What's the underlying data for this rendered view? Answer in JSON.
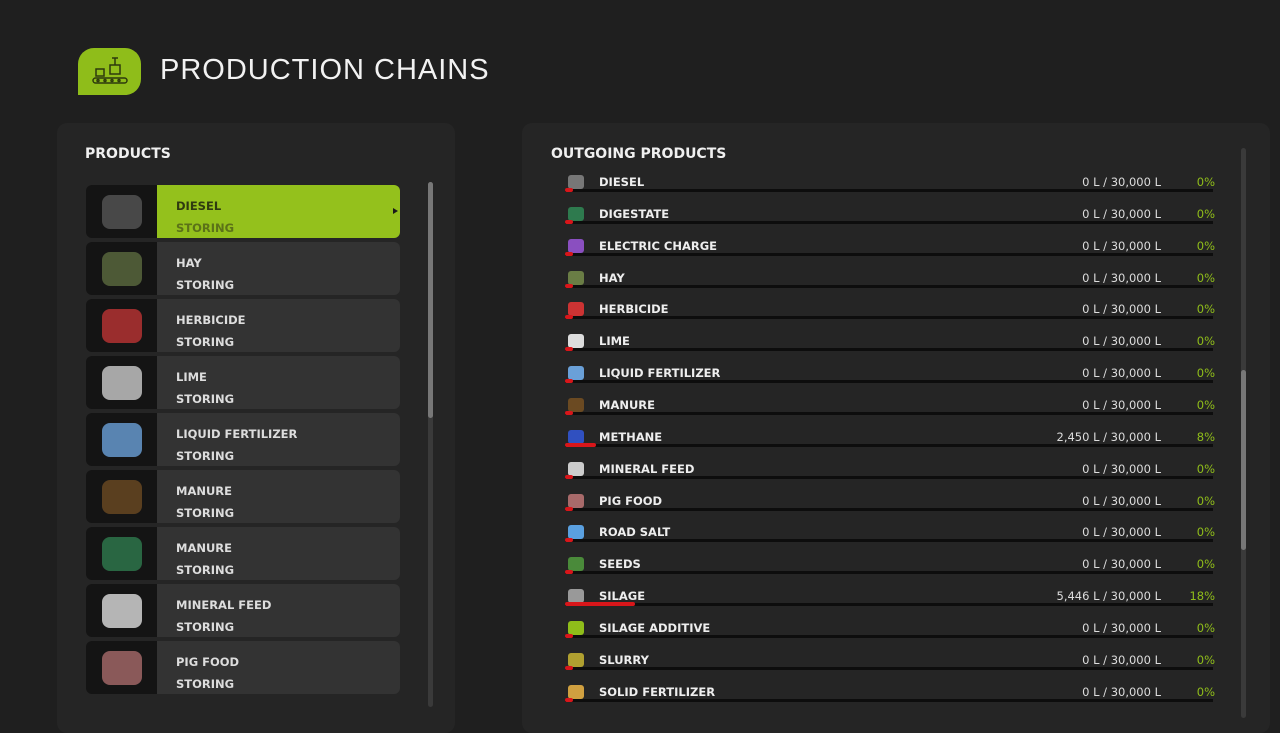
{
  "header": {
    "title": "PRODUCTION CHAINS",
    "icon": "production-conveyor-icon"
  },
  "colors": {
    "accent": "#94c11c",
    "bar_fill": "#d8161a",
    "percent": "#8fbd1a"
  },
  "products": {
    "heading": "PRODUCTS",
    "items": [
      {
        "name": "DIESEL",
        "status": "STORING",
        "icon": "fuel-pump-icon",
        "color": "#555",
        "selected": true
      },
      {
        "name": "HAY",
        "status": "STORING",
        "icon": "hay-icon",
        "color": "#5b6a3f"
      },
      {
        "name": "HERBICIDE",
        "status": "STORING",
        "icon": "herbicide-bottle-icon",
        "color": "#b33"
      },
      {
        "name": "LIME",
        "status": "STORING",
        "icon": "lime-pile-icon",
        "color": "#ccc"
      },
      {
        "name": "LIQUID FERTILIZER",
        "status": "STORING",
        "icon": "fertilizer-canister-icon",
        "color": "#6aa0d8"
      },
      {
        "name": "MANURE",
        "status": "STORING",
        "icon": "manure-icon",
        "color": "#6b4a22"
      },
      {
        "name": "MANURE",
        "status": "STORING",
        "icon": "manure-heap-icon",
        "color": "#2e7a4e"
      },
      {
        "name": "MINERAL FEED",
        "status": "STORING",
        "icon": "mineral-feed-bag-icon",
        "color": "#ddd"
      },
      {
        "name": "PIG FOOD",
        "status": "STORING",
        "icon": "pig-food-bag-icon",
        "color": "#a86a6a"
      }
    ]
  },
  "outgoing": {
    "heading": "OUTGOING PRODUCTS",
    "items": [
      {
        "name": "DIESEL",
        "amount": "0 L / 30,000 L",
        "percent": "0%",
        "fill": 0,
        "color": "#777"
      },
      {
        "name": "DIGESTATE",
        "amount": "0 L / 30,000 L",
        "percent": "0%",
        "fill": 0,
        "color": "#2e7a4e"
      },
      {
        "name": "ELECTRIC CHARGE",
        "amount": "0 L / 30,000 L",
        "percent": "0%",
        "fill": 0,
        "color": "#8a4fc0"
      },
      {
        "name": "HAY",
        "amount": "0 L / 30,000 L",
        "percent": "0%",
        "fill": 0,
        "color": "#6a7d45"
      },
      {
        "name": "HERBICIDE",
        "amount": "0 L / 30,000 L",
        "percent": "0%",
        "fill": 0,
        "color": "#c33"
      },
      {
        "name": "LIME",
        "amount": "0 L / 30,000 L",
        "percent": "0%",
        "fill": 0,
        "color": "#ddd"
      },
      {
        "name": "LIQUID FERTILIZER",
        "amount": "0 L / 30,000 L",
        "percent": "0%",
        "fill": 0,
        "color": "#6aa0d8"
      },
      {
        "name": "MANURE",
        "amount": "0 L / 30,000 L",
        "percent": "0%",
        "fill": 0,
        "color": "#6b4a22"
      },
      {
        "name": "METHANE",
        "amount": "2,450 L / 30,000 L",
        "percent": "8%",
        "fill": 8,
        "color": "#3050c0"
      },
      {
        "name": "MINERAL FEED",
        "amount": "0 L / 30,000 L",
        "percent": "0%",
        "fill": 0,
        "color": "#ccc"
      },
      {
        "name": "PIG FOOD",
        "amount": "0 L / 30,000 L",
        "percent": "0%",
        "fill": 0,
        "color": "#a86a6a"
      },
      {
        "name": "ROAD SALT",
        "amount": "0 L / 30,000 L",
        "percent": "0%",
        "fill": 0,
        "color": "#5aa0e0"
      },
      {
        "name": "SEEDS",
        "amount": "0 L / 30,000 L",
        "percent": "0%",
        "fill": 0,
        "color": "#4a8a3a"
      },
      {
        "name": "SILAGE",
        "amount": "5,446 L / 30,000 L",
        "percent": "18%",
        "fill": 18,
        "color": "#999"
      },
      {
        "name": "SILAGE ADDITIVE",
        "amount": "0 L / 30,000 L",
        "percent": "0%",
        "fill": 0,
        "color": "#8fbd1a"
      },
      {
        "name": "SLURRY",
        "amount": "0 L / 30,000 L",
        "percent": "0%",
        "fill": 0,
        "color": "#b0a030"
      },
      {
        "name": "SOLID FERTILIZER",
        "amount": "0 L / 30,000 L",
        "percent": "0%",
        "fill": 0,
        "color": "#d0a040"
      }
    ]
  }
}
